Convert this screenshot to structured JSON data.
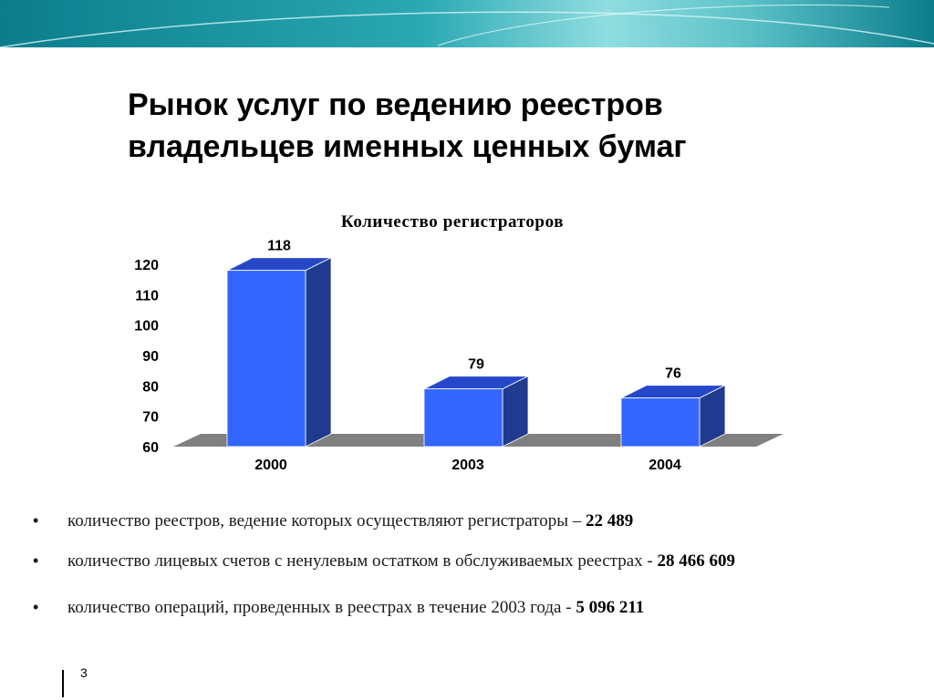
{
  "slide": {
    "title_line1": "Рынок услуг по ведению реестров",
    "title_line2": "владельцев именных ценных бумаг",
    "page_number": "3"
  },
  "colors": {
    "banner_dark": "#0b7d8c",
    "banner_light": "#9fe3e6",
    "bar_front": "#3366ff",
    "bar_side": "#1f3a8f",
    "bar_top": "#2448c8",
    "floor": "#808080"
  },
  "chart_data": {
    "type": "bar",
    "title": "Количество регистраторов",
    "categories": [
      "2000",
      "2003",
      "2004"
    ],
    "values": [
      118,
      79,
      76
    ],
    "data_labels": [
      "118",
      "79",
      "76"
    ],
    "ylim": [
      60,
      120
    ],
    "yticks": [
      "60",
      "70",
      "80",
      "90",
      "100",
      "110",
      "120"
    ],
    "grid": false,
    "style": "3d-column"
  },
  "bullets": [
    {
      "text": " количество реестров, ведение которых осуществляют регистраторы – ",
      "value": "22 489"
    },
    {
      "text": "количество лицевых счетов с ненулевым остатком в обслуживаемых реестрах - ",
      "value": "28 466 609"
    },
    {
      "text": "количество операций, проведенных в реестрах в течение 2003 года - ",
      "value": "5 096 211"
    }
  ],
  "bullet_symbol": "•"
}
